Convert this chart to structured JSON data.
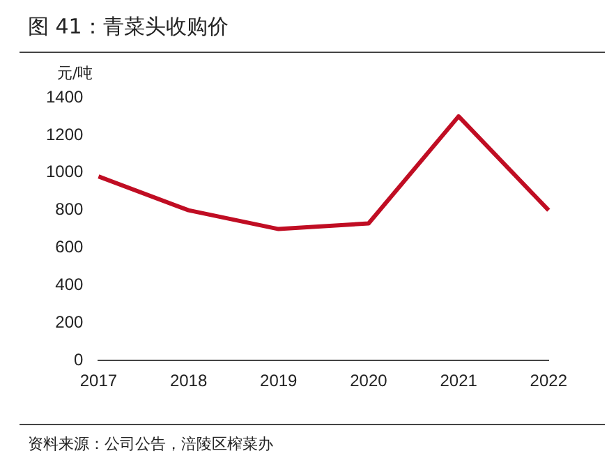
{
  "chart_data": {
    "type": "line",
    "title": "图 41：青菜头收购价",
    "ylabel": "元/吨",
    "categories": [
      "2017",
      "2018",
      "2019",
      "2020",
      "2021",
      "2022"
    ],
    "series": [
      {
        "color": "#c00d23",
        "values": [
          980,
          800,
          700,
          730,
          1300,
          800
        ]
      }
    ],
    "ylim": [
      0,
      1400
    ],
    "yticks": [
      0,
      200,
      400,
      600,
      800,
      1000,
      1200,
      1400
    ],
    "grid": false,
    "legend": false,
    "marker": "none",
    "line_style": "solid",
    "annotations": [
      "资料来源：公司公告，涪陵区榨菜办"
    ]
  }
}
